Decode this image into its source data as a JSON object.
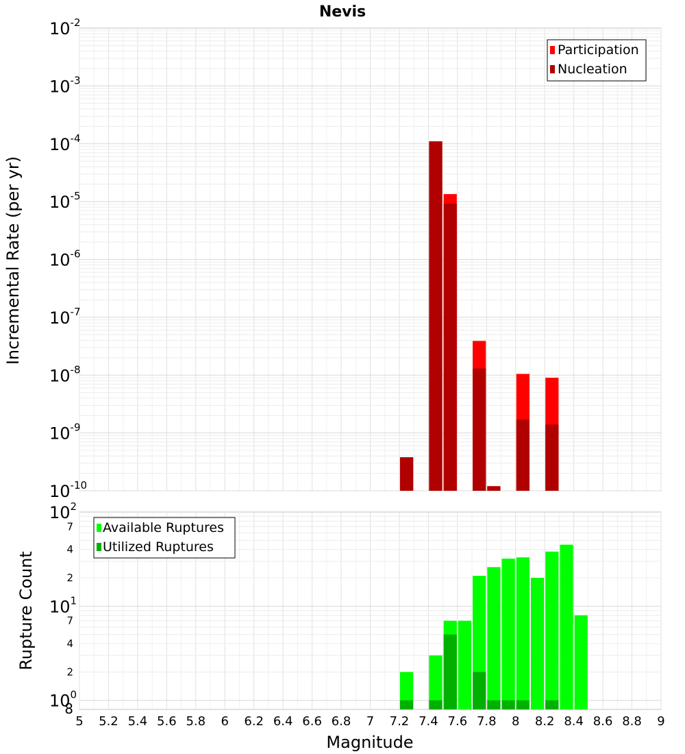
{
  "chart_data": [
    {
      "type": "bar",
      "title": "Nevis",
      "ylabel": "Incremental Rate (per yr)",
      "xlabel": "",
      "yscale": "log",
      "ylim": [
        1e-10,
        0.01
      ],
      "xlim": [
        5,
        9
      ],
      "bin_width": 0.1,
      "y_tick_exponents": [
        "-10",
        "-9",
        "-8",
        "-7",
        "-6",
        "-5",
        "-4",
        "-3",
        "-2"
      ],
      "y_tick_base": "10",
      "legend_position": "top-right",
      "series": [
        {
          "name": "Participation",
          "color": "#ff0000",
          "points": [
            [
              7.25,
              3.8e-10
            ],
            [
              7.45,
              0.00011
            ],
            [
              7.55,
              1.35e-05
            ],
            [
              7.75,
              3.9e-08
            ],
            [
              7.85,
              1.2e-10
            ],
            [
              8.05,
              1.05e-08
            ],
            [
              8.25,
              9e-09
            ]
          ]
        },
        {
          "name": "Nucleation",
          "color": "#b00000",
          "points": [
            [
              7.25,
              3.8e-10
            ],
            [
              7.45,
              0.00011
            ],
            [
              7.55,
              9.2e-06
            ],
            [
              7.75,
              1.3e-08
            ],
            [
              7.85,
              1.2e-10
            ],
            [
              8.05,
              1.7e-09
            ],
            [
              8.25,
              1.4e-09
            ]
          ]
        }
      ]
    },
    {
      "type": "bar",
      "title": "",
      "ylabel": "Rupture Count",
      "xlabel": "Magnitude",
      "yscale": "log",
      "ylim": [
        0.8,
        100
      ],
      "xlim": [
        5,
        9
      ],
      "bin_width": 0.1,
      "x_ticks": [
        "5",
        "5.2",
        "5.4",
        "5.6",
        "5.8",
        "6",
        "6.2",
        "6.4",
        "6.6",
        "6.8",
        "7",
        "7.2",
        "7.4",
        "7.6",
        "7.8",
        "8",
        "8.2",
        "8.4",
        "8.6",
        "8.8",
        "9"
      ],
      "y_major_ticks": [
        {
          "value": 1,
          "base": "10",
          "exp": "0"
        },
        {
          "value": 10,
          "base": "10",
          "exp": "1"
        },
        {
          "value": 100,
          "base": "10",
          "exp": "2"
        }
      ],
      "y_minor_ticks": [
        {
          "value": 0.8,
          "label": "8"
        },
        {
          "value": 2,
          "label": "2"
        },
        {
          "value": 4,
          "label": "4"
        },
        {
          "value": 7,
          "label": "7"
        },
        {
          "value": 20,
          "label": "2"
        },
        {
          "value": 40,
          "label": "4"
        },
        {
          "value": 70,
          "label": "7"
        }
      ],
      "legend_position": "top-left",
      "series": [
        {
          "name": "Available Ruptures",
          "color": "#00ff00",
          "points": [
            [
              7.25,
              2
            ],
            [
              7.45,
              3
            ],
            [
              7.55,
              7
            ],
            [
              7.65,
              7
            ],
            [
              7.75,
              21
            ],
            [
              7.85,
              26
            ],
            [
              7.95,
              32
            ],
            [
              8.05,
              33
            ],
            [
              8.15,
              20
            ],
            [
              8.25,
              38
            ],
            [
              8.35,
              45
            ],
            [
              8.45,
              8
            ]
          ]
        },
        {
          "name": "Utilized Ruptures",
          "color": "#00b000",
          "points": [
            [
              7.25,
              1
            ],
            [
              7.45,
              1
            ],
            [
              7.55,
              5
            ],
            [
              7.75,
              2
            ],
            [
              7.85,
              1
            ],
            [
              7.95,
              1
            ],
            [
              8.05,
              1
            ],
            [
              8.25,
              1
            ]
          ]
        }
      ]
    }
  ]
}
